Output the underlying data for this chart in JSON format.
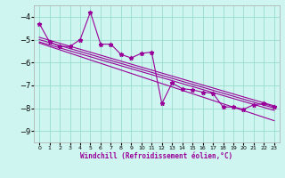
{
  "xlabel": "Windchill (Refroidissement éolien,°C)",
  "bg_color": "#cff5f0",
  "grid_color": "#99ddcc",
  "line_color": "#990099",
  "ylim": [
    -9.5,
    -3.5
  ],
  "xlim": [
    -0.5,
    23.5
  ],
  "yticks": [
    -9,
    -8,
    -7,
    -6,
    -5,
    -4
  ],
  "xticks": [
    0,
    1,
    2,
    3,
    4,
    5,
    6,
    7,
    8,
    9,
    10,
    11,
    12,
    13,
    14,
    15,
    16,
    17,
    18,
    19,
    20,
    21,
    22,
    23
  ],
  "main_line": [
    -4.3,
    -5.1,
    -5.3,
    -5.3,
    -5.0,
    -3.8,
    -5.2,
    -5.2,
    -5.65,
    -5.8,
    -5.6,
    -5.55,
    -7.8,
    -6.9,
    -7.15,
    -7.2,
    -7.3,
    -7.35,
    -7.95,
    -7.95,
    -8.05,
    -7.85,
    -7.8,
    -7.95
  ],
  "reg_lines": [
    {
      "x0": 0,
      "y0": -4.9,
      "x1": 23,
      "y1": -7.9
    },
    {
      "x0": 0,
      "y0": -5.0,
      "x1": 23,
      "y1": -8.0
    },
    {
      "x0": 0,
      "y0": -5.1,
      "x1": 23,
      "y1": -8.1
    },
    {
      "x0": 0,
      "y0": -5.15,
      "x1": 23,
      "y1": -8.55
    }
  ]
}
